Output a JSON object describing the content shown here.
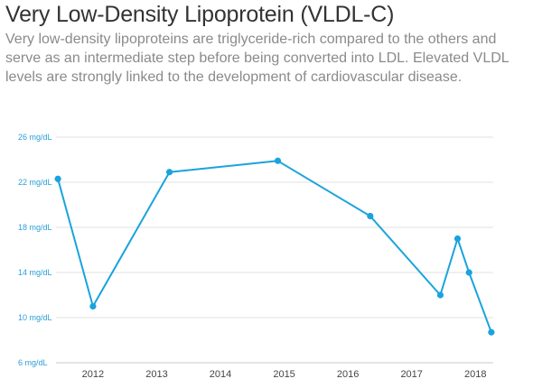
{
  "header": {
    "title": "Very Low-Density Lipoprotein (VLDL-C)",
    "subtitle": "Very low-density lipoproteins are triglyceride-rich compared to the others and serve as an intermediate step before being converted into LDL. Elevated VLDL levels are strongly linked to the development of cardiovascular disease."
  },
  "chart_data": {
    "type": "line",
    "title": "",
    "xlabel": "",
    "ylabel": "",
    "y_unit": "mg/dL",
    "ylim": [
      6,
      26
    ],
    "y_ticks": [
      6,
      10,
      14,
      18,
      22,
      26
    ],
    "y_tick_labels": [
      "6 mg/dL",
      "10 mg/dL",
      "14 mg/dL",
      "18 mg/dL",
      "22 mg/dL",
      "26 mg/dL"
    ],
    "x_ticks": [
      2012,
      2013,
      2014,
      2015,
      2016,
      2017,
      2018
    ],
    "x_tick_labels": [
      "2012",
      "2013",
      "2014",
      "2015",
      "2016",
      "2017",
      "2018"
    ],
    "xlim": [
      2011.42,
      2018.28
    ],
    "grid": true,
    "line_color": "#1aa3dd",
    "series": [
      {
        "x": [
          2011.45,
          2012.0,
          2013.2,
          2014.9,
          2016.35,
          2017.45,
          2017.72,
          2017.9,
          2018.25
        ],
        "values": [
          22.3,
          11.0,
          22.9,
          23.9,
          19.0,
          12.0,
          17.0,
          14.0,
          8.7
        ]
      }
    ]
  }
}
